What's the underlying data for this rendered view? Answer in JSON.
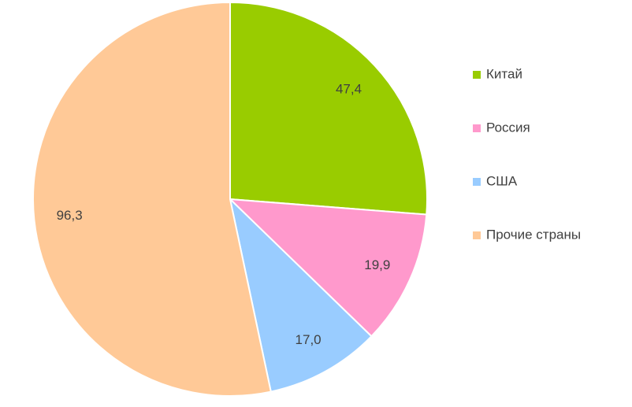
{
  "chart_data": {
    "type": "pie",
    "categories": [
      "Китай",
      "Россия",
      "США",
      "Прочие страны"
    ],
    "values": [
      47.4,
      19.9,
      17.0,
      96.3
    ],
    "value_labels": [
      "47,4",
      "19,9",
      "17,0",
      "96,3"
    ],
    "colors": [
      "#99cc00",
      "#ff99cc",
      "#99ccff",
      "#ffc997"
    ],
    "legend": "right"
  }
}
